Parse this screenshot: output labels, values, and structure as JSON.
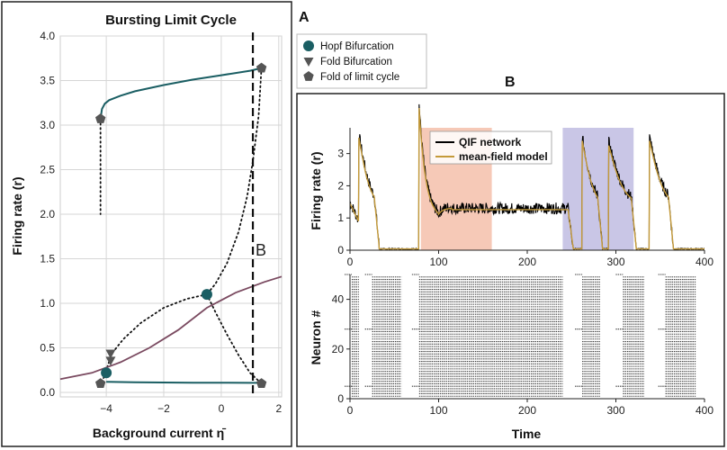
{
  "panels": {
    "a_label": "A",
    "b_label": "B",
    "marker_b": "B"
  },
  "colors": {
    "stable_branch": "#1a5e63",
    "mean_field": "#c49a3a",
    "qif": "#000000",
    "red_region": "#f6c9b7",
    "blue_region": "#c9c6e6",
    "purple_line": "#7a4a60",
    "marker": "#555555"
  },
  "chart_data": [
    {
      "type": "line",
      "title": "Bursting Limit Cycle",
      "xlabel": "Background current η̄",
      "ylabel": "Firing rate (r)",
      "xlim": [
        -5.6,
        2.1
      ],
      "ylim": [
        -0.05,
        4.0
      ],
      "xticks": [
        -4,
        -2,
        0,
        2
      ],
      "yticks": [
        0.0,
        0.5,
        1.0,
        1.5,
        2.0,
        2.5,
        3.0,
        3.5,
        4.0
      ],
      "grid": true,
      "vline_x": 1.1,
      "series": [
        {
          "style": "stable",
          "x": [
            -4.2,
            -4.15,
            -4.05,
            -3.9,
            -3.5,
            -3.0,
            -2.0,
            -1.0,
            0.0,
            1.0,
            1.4
          ],
          "y": [
            3.07,
            3.18,
            3.24,
            3.28,
            3.33,
            3.38,
            3.45,
            3.51,
            3.56,
            3.61,
            3.64
          ]
        },
        {
          "style": "stable",
          "x": [
            -4.0,
            -3.0,
            -2.0,
            -1.0,
            0.0,
            1.0,
            1.4
          ],
          "y": [
            0.12,
            0.115,
            0.112,
            0.11,
            0.11,
            0.108,
            0.108
          ]
        },
        {
          "style": "dotted",
          "x": [
            -4.2,
            -4.2,
            -4.2,
            -4.2
          ],
          "y": [
            3.07,
            2.8,
            2.4,
            2.0
          ]
        },
        {
          "style": "dotted",
          "x": [
            1.4,
            1.3,
            1.1,
            0.9,
            0.6,
            0.2,
            -0.2,
            -0.5
          ],
          "y": [
            3.64,
            3.1,
            2.6,
            2.2,
            1.8,
            1.45,
            1.22,
            1.1
          ]
        },
        {
          "style": "dotted",
          "x": [
            -0.5,
            -1.2,
            -2.0,
            -2.8,
            -3.4,
            -3.8
          ],
          "y": [
            1.1,
            1.05,
            0.95,
            0.78,
            0.6,
            0.44
          ]
        },
        {
          "style": "dotted",
          "x": [
            -3.8,
            -3.95,
            -4.0
          ],
          "y": [
            0.44,
            0.3,
            0.22
          ]
        },
        {
          "style": "dotted",
          "x": [
            -4.0,
            -4.2
          ],
          "y": [
            0.22,
            0.1
          ]
        },
        {
          "style": "dotted",
          "x": [
            -0.5,
            -0.2,
            0.2,
            0.6,
            1.0,
            1.4
          ],
          "y": [
            1.1,
            0.9,
            0.65,
            0.42,
            0.22,
            0.1
          ]
        },
        {
          "style": "purple",
          "x": [
            -5.6,
            -4.5,
            -3.5,
            -2.5,
            -1.5,
            -0.5,
            0.5,
            1.5,
            2.1
          ],
          "y": [
            0.15,
            0.22,
            0.34,
            0.5,
            0.7,
            0.95,
            1.12,
            1.24,
            1.3
          ]
        }
      ],
      "markers": [
        {
          "kind": "hopf",
          "x": -0.5,
          "y": 1.1
        },
        {
          "kind": "hopf",
          "x": -4.0,
          "y": 0.22
        },
        {
          "kind": "fold",
          "x": -3.85,
          "y": 0.44
        },
        {
          "kind": "fold",
          "x": -3.85,
          "y": 0.36
        },
        {
          "kind": "lc_fold",
          "x": -4.2,
          "y": 3.07
        },
        {
          "kind": "lc_fold",
          "x": 1.4,
          "y": 3.64
        },
        {
          "kind": "lc_fold",
          "x": -4.2,
          "y": 0.1
        },
        {
          "kind": "lc_fold",
          "x": 1.4,
          "y": 0.1
        }
      ],
      "legend": {
        "position": "right",
        "entries": [
          {
            "kind": "hopf",
            "label": "Hopf Bifurcation"
          },
          {
            "kind": "fold",
            "label": "Fold Bifurcation"
          },
          {
            "kind": "lc_fold",
            "label": "Fold of limit cycle"
          }
        ]
      }
    },
    {
      "type": "line",
      "ylabel": "Firing rate (r)",
      "xlim": [
        0,
        400
      ],
      "ylim": [
        0,
        3.8
      ],
      "xticks": [
        0,
        100,
        200,
        300,
        400
      ],
      "yticks": [
        0,
        1,
        2,
        3
      ],
      "shaded_regions": [
        {
          "x0": 80,
          "x1": 160,
          "color": "red_region"
        },
        {
          "x0": 240,
          "x1": 320,
          "color": "blue_region"
        }
      ],
      "bursts": [
        {
          "start": 0,
          "end": 5,
          "peak": 1.5,
          "plateau": 1.3
        },
        {
          "start": 10,
          "end": 28,
          "peak": 3.6,
          "plateau": 1.55
        },
        {
          "start": 78,
          "end": 160,
          "peak": 3.55,
          "plateau": 1.3
        },
        {
          "start": 250,
          "end": 262,
          "peak": 0,
          "plateau": 0
        },
        {
          "start": 262,
          "end": 280,
          "peak": 3.5,
          "plateau": 1.55
        },
        {
          "start": 292,
          "end": 318,
          "peak": 3.35,
          "plateau": 1.5
        },
        {
          "start": 338,
          "end": 360,
          "peak": 3.5,
          "plateau": 1.5
        }
      ],
      "legend": {
        "position": "top-center",
        "entries": [
          {
            "color": "qif",
            "label": "QIF network"
          },
          {
            "color": "mean_field",
            "label": "mean-field model"
          }
        ]
      }
    },
    {
      "type": "scatter",
      "xlabel": "Time",
      "ylabel": "Neuron #",
      "xlim": [
        0,
        400
      ],
      "ylim": [
        0,
        50
      ],
      "xticks": [
        0,
        100,
        200,
        300,
        400
      ],
      "yticks": [
        0,
        20,
        40
      ],
      "raster_blocks": [
        {
          "x0": 2,
          "x1": 10
        },
        {
          "x0": 25,
          "x1": 58
        },
        {
          "x0": 78,
          "x1": 240
        },
        {
          "x0": 262,
          "x1": 282
        },
        {
          "x0": 308,
          "x1": 332
        },
        {
          "x0": 356,
          "x1": 390
        }
      ]
    }
  ]
}
